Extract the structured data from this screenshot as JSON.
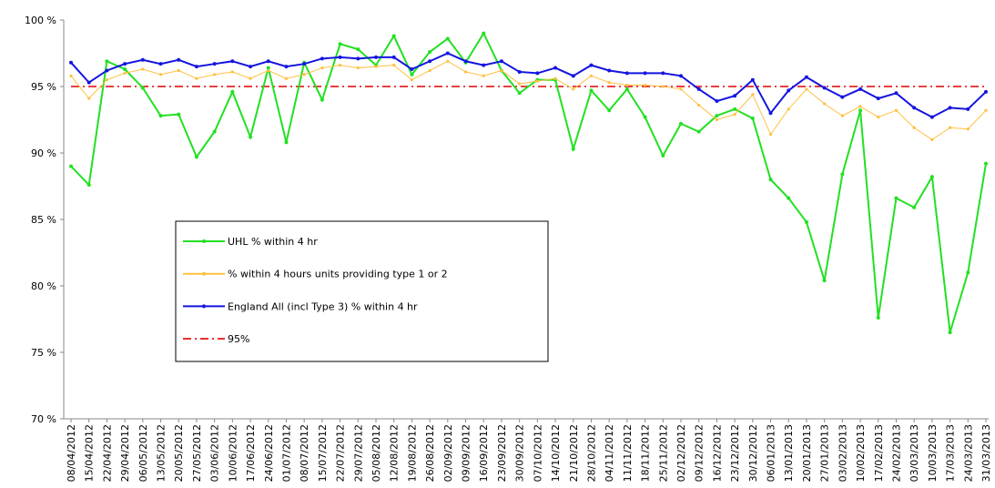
{
  "chart_data": {
    "type": "line",
    "categories": [
      "08/04/2012",
      "15/04/2012",
      "22/04/2012",
      "29/04/2012",
      "06/05/2012",
      "13/05/2012",
      "20/05/2012",
      "27/05/2012",
      "03/06/2012",
      "10/06/2012",
      "17/06/2012",
      "24/06/2012",
      "01/07/2012",
      "08/07/2012",
      "15/07/2012",
      "22/07/2012",
      "29/07/2012",
      "05/08/2012",
      "12/08/2012",
      "19/08/2012",
      "26/08/2012",
      "02/09/2012",
      "09/09/2012",
      "16/09/2012",
      "23/09/2012",
      "30/09/2012",
      "07/10/2012",
      "14/10/2012",
      "21/10/2012",
      "28/10/2012",
      "04/11/2012",
      "11/11/2012",
      "18/11/2012",
      "25/11/2012",
      "02/12/2012",
      "09/12/2012",
      "16/12/2012",
      "23/12/2012",
      "30/12/2012",
      "06/01/2013",
      "13/01/2013",
      "20/01/2013",
      "27/01/2013",
      "03/02/2013",
      "10/02/2013",
      "17/02/2013",
      "24/02/2013",
      "03/03/2013",
      "10/03/2013",
      "17/03/2013",
      "24/03/2013",
      "31/03/2013"
    ],
    "series": [
      {
        "name": "UHL % within 4 hr",
        "color": "#22e022",
        "marker": true,
        "dash": false,
        "values": [
          89.0,
          87.6,
          96.9,
          96.3,
          94.9,
          92.8,
          92.9,
          89.7,
          91.6,
          94.6,
          91.2,
          96.4,
          90.8,
          96.8,
          94.0,
          98.2,
          97.8,
          96.6,
          98.8,
          95.9,
          97.6,
          98.6,
          96.8,
          99.0,
          96.2,
          94.5,
          95.5,
          95.5,
          90.3,
          94.7,
          93.2,
          94.8,
          92.7,
          89.8,
          92.2,
          91.6,
          92.8,
          93.3,
          92.6,
          88.0,
          86.6,
          84.8,
          80.4,
          88.4,
          93.2,
          77.6,
          86.6,
          85.9,
          88.2,
          76.5,
          81.0,
          89.2
        ]
      },
      {
        "name": "% within 4 hours units providing type 1 or 2",
        "color": "#ffc040",
        "marker": true,
        "dash": false,
        "values": [
          95.8,
          94.1,
          95.5,
          96.0,
          96.3,
          95.9,
          96.2,
          95.6,
          95.9,
          96.1,
          95.6,
          96.2,
          95.6,
          95.9,
          96.4,
          96.6,
          96.4,
          96.5,
          96.6,
          95.5,
          96.2,
          96.9,
          96.1,
          95.8,
          96.2,
          95.2,
          95.4,
          95.6,
          94.8,
          95.8,
          95.3,
          95.1,
          95.1,
          95.0,
          94.8,
          93.6,
          92.5,
          92.9,
          94.4,
          91.4,
          93.3,
          94.8,
          93.7,
          92.8,
          93.5,
          92.7,
          93.2,
          91.9,
          91.0,
          91.9,
          91.8,
          93.2
        ]
      },
      {
        "name": "England All (incl Type 3) % within 4 hr",
        "color": "#1414e0",
        "marker": true,
        "dash": false,
        "values": [
          96.8,
          95.3,
          96.2,
          96.7,
          97.0,
          96.7,
          97.0,
          96.5,
          96.7,
          96.9,
          96.5,
          96.9,
          96.5,
          96.7,
          97.1,
          97.2,
          97.1,
          97.2,
          97.2,
          96.3,
          96.9,
          97.5,
          96.9,
          96.6,
          96.9,
          96.1,
          96.0,
          96.4,
          95.8,
          96.6,
          96.2,
          96.0,
          96.0,
          96.0,
          95.8,
          94.8,
          93.9,
          94.3,
          95.5,
          93.0,
          94.7,
          95.7,
          94.9,
          94.2,
          94.8,
          94.1,
          94.5,
          93.4,
          92.7,
          93.4,
          93.3,
          94.6
        ]
      },
      {
        "name": "95%",
        "color": "#e00000",
        "marker": false,
        "dash": true,
        "values": [
          95,
          95,
          95,
          95,
          95,
          95,
          95,
          95,
          95,
          95,
          95,
          95,
          95,
          95,
          95,
          95,
          95,
          95,
          95,
          95,
          95,
          95,
          95,
          95,
          95,
          95,
          95,
          95,
          95,
          95,
          95,
          95,
          95,
          95,
          95,
          95,
          95,
          95,
          95,
          95,
          95,
          95,
          95,
          95,
          95,
          95,
          95,
          95,
          95,
          95,
          95,
          95
        ]
      }
    ],
    "ylim": [
      70,
      100
    ],
    "yticks": [
      {
        "value": 70,
        "label": "70 %"
      },
      {
        "value": 75,
        "label": "75 %"
      },
      {
        "value": 80,
        "label": "80 %"
      },
      {
        "value": 85,
        "label": "85 %"
      },
      {
        "value": 90,
        "label": "90 %"
      },
      {
        "value": 95,
        "label": "95 %"
      },
      {
        "value": 100,
        "label": "100 %"
      }
    ],
    "grid": false
  }
}
